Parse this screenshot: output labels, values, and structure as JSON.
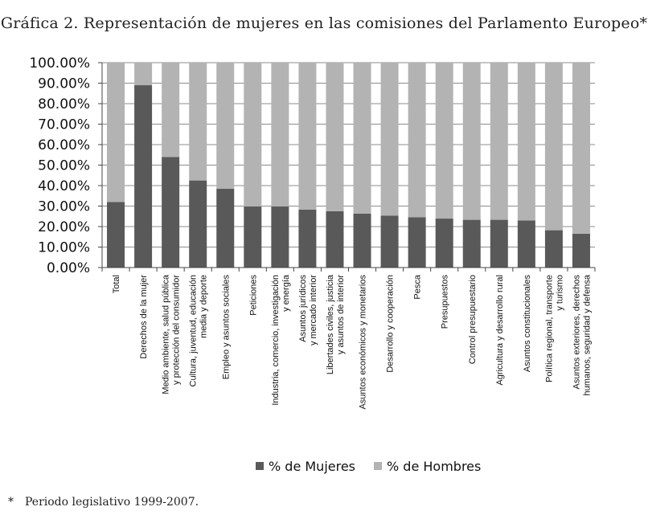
{
  "title": "Gráfica 2. Representación de mujeres en las comisiones del Parlamento Europeo*",
  "footnote": {
    "marker": "*",
    "text": "Periodo legislativo 1999-2007."
  },
  "colors": {
    "women": "#595959",
    "men": "#b3b3b3",
    "grid": "#8c8c8c",
    "axis": "#444444"
  },
  "chart_data": {
    "type": "bar",
    "stacked": true,
    "percent": true,
    "ylim": [
      0,
      100
    ],
    "ytick_labels": [
      "0.00%",
      "10.00%",
      "20.00%",
      "30.00%",
      "40.00%",
      "50.00%",
      "60.00%",
      "70.00%",
      "80.00%",
      "90.00%",
      "100.00%"
    ],
    "grid": true,
    "legend_position": "bottom",
    "categories": [
      [
        "Total"
      ],
      [
        "Derechos de la mujer"
      ],
      [
        "Medio ambiente, salud pública",
        "y protección del consumidor"
      ],
      [
        "Cultura, juventud, educación",
        "media y deporte"
      ],
      [
        "Empleo y asuntos sociales"
      ],
      [
        "Peticiones"
      ],
      [
        "Industria, comercio, investigación",
        "y energía"
      ],
      [
        "Asuntos jurídicos",
        "y mercado interior"
      ],
      [
        "Libertades civiles, justicia",
        "y asuntos de interior"
      ],
      [
        "Asuntos económicos y monetarios"
      ],
      [
        "Desarrollo y cooperación"
      ],
      [
        "Pesca"
      ],
      [
        "Presupuestos"
      ],
      [
        "Control presupuestario"
      ],
      [
        "Agricultura y desarrollo rural"
      ],
      [
        "Asuntos constitucionales"
      ],
      [
        "Política regional, transporte",
        "y turismo"
      ],
      [
        "Asuntos exteriores, derechos",
        "humanos, seguridad y defensa"
      ]
    ],
    "series": [
      {
        "name": "% de Mujeres",
        "values": [
          32,
          89,
          54,
          42.5,
          38.5,
          29.8,
          29.8,
          28.3,
          27.5,
          26.3,
          25.3,
          24.6,
          23.9,
          23.3,
          23.3,
          23.0,
          18.2,
          16.5
        ]
      },
      {
        "name": "% de Hombres",
        "values": [
          68,
          11,
          46,
          57.5,
          61.5,
          70.2,
          70.2,
          71.7,
          72.5,
          73.7,
          74.7,
          75.4,
          76.1,
          76.7,
          76.7,
          77.0,
          81.8,
          83.5
        ]
      }
    ]
  }
}
